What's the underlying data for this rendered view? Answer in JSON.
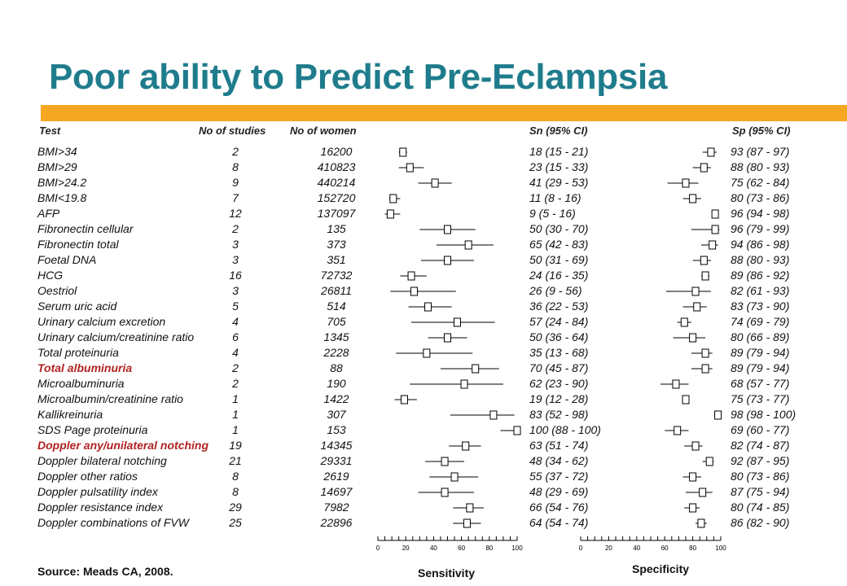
{
  "title": "Poor ability to Predict Pre-Eclampsia",
  "source": "Source: Meads CA, 2008.",
  "headers": {
    "test": "Test",
    "studies": "No of studies",
    "women": "No of women",
    "sn": "Sn (95% CI)",
    "sp": "Sp (95% CI)"
  },
  "colors": {
    "title": "#1f7c8c",
    "band": "#f5a623",
    "highlight": "#b22222"
  },
  "chart_data": {
    "type": "forest",
    "panels": [
      {
        "xlabel": "Sensitivity",
        "xlim": [
          0,
          100
        ],
        "ticks": [
          0,
          20,
          40,
          60,
          80,
          100
        ]
      },
      {
        "xlabel": "Specificity",
        "xlim": [
          0,
          100
        ],
        "ticks": [
          0,
          20,
          40,
          60,
          80,
          100
        ]
      }
    ],
    "rows": [
      {
        "test": "BMI>34",
        "studies": "2",
        "women": "16200",
        "sn": 18,
        "sn_lo": 15,
        "sn_hi": 21,
        "sn_text": "18 (15 - 21)",
        "sp": 93,
        "sp_lo": 87,
        "sp_hi": 97,
        "sp_text": "93 (87 - 97)"
      },
      {
        "test": "BMI>29",
        "studies": "8",
        "women": "410823",
        "sn": 23,
        "sn_lo": 15,
        "sn_hi": 33,
        "sn_text": "23 (15 - 33)",
        "sp": 88,
        "sp_lo": 80,
        "sp_hi": 93,
        "sp_text": "88 (80 - 93)"
      },
      {
        "test": "BMI>24.2",
        "studies": "9",
        "women": "440214",
        "sn": 41,
        "sn_lo": 29,
        "sn_hi": 53,
        "sn_text": "41 (29 - 53)",
        "sp": 75,
        "sp_lo": 62,
        "sp_hi": 84,
        "sp_text": "75 (62 - 84)"
      },
      {
        "test": "BMI<19.8",
        "studies": "7",
        "women": "152720",
        "sn": 11,
        "sn_lo": 8,
        "sn_hi": 16,
        "sn_text": "11 (8 - 16)",
        "sp": 80,
        "sp_lo": 73,
        "sp_hi": 86,
        "sp_text": "80 (73 - 86)"
      },
      {
        "test": "AFP",
        "studies": "12",
        "women": "137097",
        "sn": 9,
        "sn_lo": 5,
        "sn_hi": 16,
        "sn_text": "9 (5 - 16)",
        "sp": 96,
        "sp_lo": 94,
        "sp_hi": 98,
        "sp_text": "96 (94 - 98)"
      },
      {
        "test": "Fibronectin cellular",
        "studies": "2",
        "women": "135",
        "sn": 50,
        "sn_lo": 30,
        "sn_hi": 70,
        "sn_text": "50 (30 - 70)",
        "sp": 96,
        "sp_lo": 79,
        "sp_hi": 99,
        "sp_text": "96 (79 - 99)"
      },
      {
        "test": "Fibronectin total",
        "studies": "3",
        "women": "373",
        "sn": 65,
        "sn_lo": 42,
        "sn_hi": 83,
        "sn_text": "65 (42 - 83)",
        "sp": 94,
        "sp_lo": 86,
        "sp_hi": 98,
        "sp_text": "94 (86 - 98)"
      },
      {
        "test": "Foetal DNA",
        "studies": "3",
        "women": "351",
        "sn": 50,
        "sn_lo": 31,
        "sn_hi": 69,
        "sn_text": "50 (31 - 69)",
        "sp": 88,
        "sp_lo": 80,
        "sp_hi": 93,
        "sp_text": "88 (80 - 93)"
      },
      {
        "test": "HCG",
        "studies": "16",
        "women": "72732",
        "sn": 24,
        "sn_lo": 16,
        "sn_hi": 35,
        "sn_text": "24 (16 - 35)",
        "sp": 89,
        "sp_lo": 86,
        "sp_hi": 92,
        "sp_text": "89 (86 - 92)"
      },
      {
        "test": "Oestriol",
        "studies": "3",
        "women": "26811",
        "sn": 26,
        "sn_lo": 9,
        "sn_hi": 56,
        "sn_text": "26 (9 - 56)",
        "sp": 82,
        "sp_lo": 61,
        "sp_hi": 93,
        "sp_text": "82 (61 - 93)"
      },
      {
        "test": "Serum uric acid",
        "studies": "5",
        "women": "514",
        "sn": 36,
        "sn_lo": 22,
        "sn_hi": 53,
        "sn_text": "36 (22 - 53)",
        "sp": 83,
        "sp_lo": 73,
        "sp_hi": 90,
        "sp_text": "83 (73 - 90)"
      },
      {
        "test": "Urinary calcium excretion",
        "studies": "4",
        "women": "705",
        "sn": 57,
        "sn_lo": 24,
        "sn_hi": 84,
        "sn_text": "57 (24 - 84)",
        "sp": 74,
        "sp_lo": 69,
        "sp_hi": 79,
        "sp_text": "74 (69 - 79)"
      },
      {
        "test": "Urinary calcium/creatinine ratio",
        "studies": "6",
        "women": "1345",
        "sn": 50,
        "sn_lo": 36,
        "sn_hi": 64,
        "sn_text": "50 (36 - 64)",
        "sp": 80,
        "sp_lo": 66,
        "sp_hi": 89,
        "sp_text": "80 (66 - 89)"
      },
      {
        "test": "Total proteinuria",
        "studies": "4",
        "women": "2228",
        "sn": 35,
        "sn_lo": 13,
        "sn_hi": 68,
        "sn_text": "35 (13 - 68)",
        "sp": 89,
        "sp_lo": 79,
        "sp_hi": 94,
        "sp_text": "89 (79 - 94)"
      },
      {
        "test": "Total albuminuria",
        "studies": "2",
        "women": "88",
        "sn": 70,
        "sn_lo": 45,
        "sn_hi": 87,
        "sn_text": "70 (45 - 87)",
        "sp": 89,
        "sp_lo": 79,
        "sp_hi": 94,
        "sp_text": "89 (79 - 94)",
        "highlight": true
      },
      {
        "test": "Microalbuminuria",
        "studies": "2",
        "women": "190",
        "sn": 62,
        "sn_lo": 23,
        "sn_hi": 90,
        "sn_text": "62 (23 - 90)",
        "sp": 68,
        "sp_lo": 57,
        "sp_hi": 77,
        "sp_text": "68 (57 - 77)"
      },
      {
        "test": "Microalbumin/creatinine ratio",
        "studies": "1",
        "women": "1422",
        "sn": 19,
        "sn_lo": 12,
        "sn_hi": 28,
        "sn_text": "19 (12 - 28)",
        "sp": 75,
        "sp_lo": 73,
        "sp_hi": 77,
        "sp_text": "75 (73 - 77)"
      },
      {
        "test": "Kallikreinuria",
        "studies": "1",
        "women": "307",
        "sn": 83,
        "sn_lo": 52,
        "sn_hi": 98,
        "sn_text": "83 (52 - 98)",
        "sp": 98,
        "sp_lo": 98,
        "sp_hi": 100,
        "sp_text": "98 (98 - 100)"
      },
      {
        "test": "SDS Page proteinuria",
        "studies": "1",
        "women": "153",
        "sn": 100,
        "sn_lo": 88,
        "sn_hi": 100,
        "sn_text": "100 (88 - 100)",
        "sp": 69,
        "sp_lo": 60,
        "sp_hi": 77,
        "sp_text": "69 (60 - 77)"
      },
      {
        "test": "Doppler any/unilateral notching",
        "studies": "19",
        "women": "14345",
        "sn": 63,
        "sn_lo": 51,
        "sn_hi": 74,
        "sn_text": "63 (51 - 74)",
        "sp": 82,
        "sp_lo": 74,
        "sp_hi": 87,
        "sp_text": "82 (74 - 87)",
        "highlight": true
      },
      {
        "test": "Doppler bilateral notching",
        "studies": "21",
        "women": "29331",
        "sn": 48,
        "sn_lo": 34,
        "sn_hi": 62,
        "sn_text": "48 (34 - 62)",
        "sp": 92,
        "sp_lo": 87,
        "sp_hi": 95,
        "sp_text": "92 (87 - 95)"
      },
      {
        "test": "Doppler other ratios",
        "studies": "8",
        "women": "2619",
        "sn": 55,
        "sn_lo": 37,
        "sn_hi": 72,
        "sn_text": "55 (37 - 72)",
        "sp": 80,
        "sp_lo": 73,
        "sp_hi": 86,
        "sp_text": "80 (73 - 86)"
      },
      {
        "test": "Doppler pulsatility index",
        "studies": "8",
        "women": "14697",
        "sn": 48,
        "sn_lo": 29,
        "sn_hi": 69,
        "sn_text": "48 (29 - 69)",
        "sp": 87,
        "sp_lo": 75,
        "sp_hi": 94,
        "sp_text": "87 (75 - 94)"
      },
      {
        "test": "Doppler resistance index",
        "studies": "29",
        "women": "7982",
        "sn": 66,
        "sn_lo": 54,
        "sn_hi": 76,
        "sn_text": "66 (54 - 76)",
        "sp": 80,
        "sp_lo": 74,
        "sp_hi": 85,
        "sp_text": "80 (74 - 85)"
      },
      {
        "test": "Doppler combinations of FVW",
        "studies": "25",
        "women": "22896",
        "sn": 64,
        "sn_lo": 54,
        "sn_hi": 74,
        "sn_text": "64 (54 - 74)",
        "sp": 86,
        "sp_lo": 82,
        "sp_hi": 90,
        "sp_text": "86 (82 - 90)"
      }
    ]
  }
}
